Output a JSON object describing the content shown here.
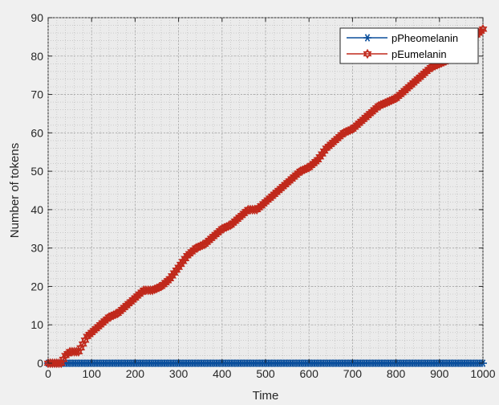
{
  "chart_data": {
    "type": "line",
    "title": "",
    "xlabel": "Time",
    "ylabel": "Number of tokens",
    "xlim": [
      0,
      1000
    ],
    "ylim": [
      0,
      90
    ],
    "xticks": [
      0,
      100,
      200,
      300,
      400,
      500,
      600,
      700,
      800,
      900,
      1000
    ],
    "yticks": [
      0,
      10,
      20,
      30,
      40,
      50,
      60,
      70,
      80,
      90
    ],
    "xtick_labels": [
      "0",
      "100",
      "200",
      "300",
      "400",
      "500",
      "600",
      "700",
      "800",
      "900",
      "1000"
    ],
    "ytick_labels": [
      "0",
      "10",
      "20",
      "30",
      "40",
      "50",
      "60",
      "70",
      "80",
      "90"
    ],
    "grid": true,
    "minor_grid": true,
    "legend_position": "top-right",
    "series": [
      {
        "name": "pPheomelanin",
        "color": "#0b4f9c",
        "marker": "asterisk",
        "x": [
          0,
          100,
          200,
          300,
          400,
          500,
          600,
          700,
          800,
          900,
          1000
        ],
        "y": [
          0,
          0,
          0,
          0,
          0,
          0,
          0,
          0,
          0,
          0,
          0
        ]
      },
      {
        "name": "pEumelanin",
        "color": "#c0281b",
        "marker": "hexagram",
        "x": [
          0,
          20,
          30,
          40,
          50,
          60,
          70,
          80,
          90,
          100,
          120,
          140,
          160,
          180,
          200,
          220,
          240,
          260,
          280,
          300,
          320,
          340,
          360,
          380,
          400,
          420,
          440,
          460,
          480,
          500,
          520,
          540,
          560,
          580,
          600,
          620,
          640,
          660,
          680,
          700,
          720,
          740,
          760,
          780,
          800,
          820,
          840,
          860,
          880,
          900,
          920,
          940,
          960,
          980,
          1000
        ],
        "y": [
          0,
          0,
          0,
          2,
          3,
          3,
          3,
          5,
          7,
          8,
          10,
          12,
          13,
          15,
          17,
          19,
          19,
          20,
          22,
          25,
          28,
          30,
          31,
          33,
          35,
          36,
          38,
          40,
          40,
          42,
          44,
          46,
          48,
          50,
          51,
          53,
          56,
          58,
          60,
          61,
          63,
          65,
          67,
          68,
          69,
          71,
          73,
          75,
          77,
          78,
          79,
          81,
          83,
          85,
          87
        ]
      }
    ]
  }
}
